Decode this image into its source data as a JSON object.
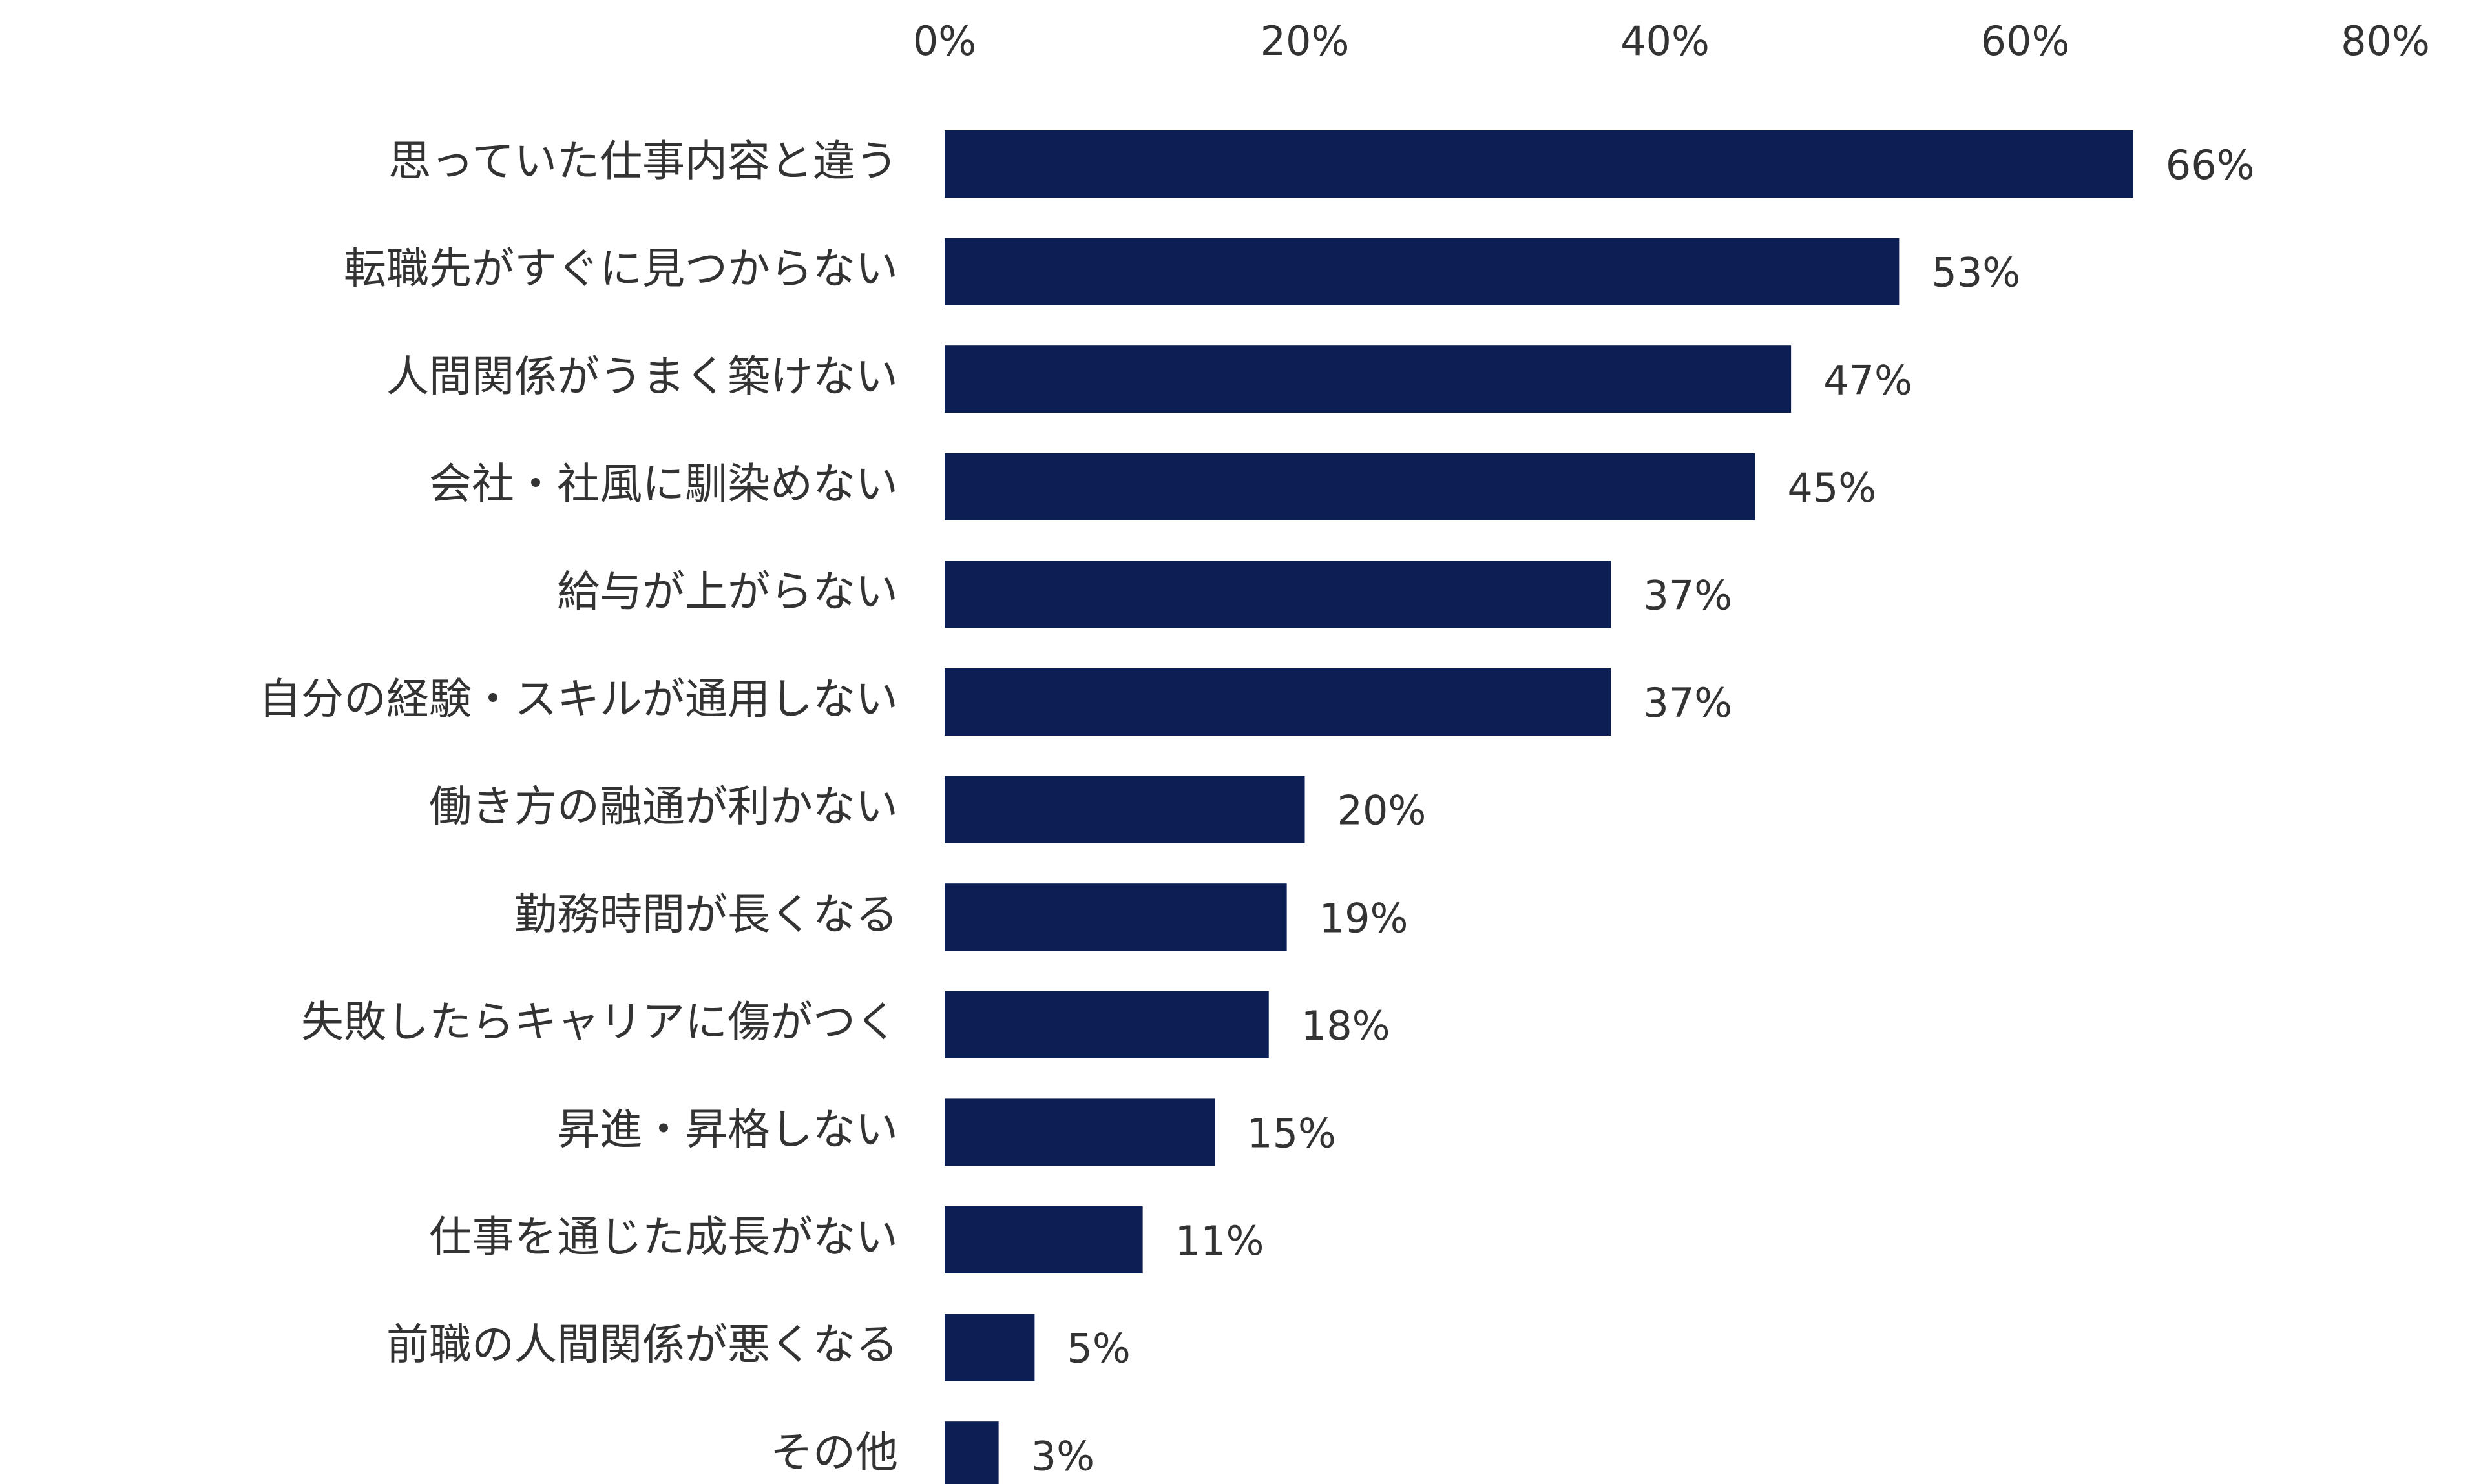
{
  "chart_data": {
    "type": "bar",
    "orientation": "horizontal",
    "categories": [
      "思っていた仕事内容と違う",
      "転職先がすぐに見つからない",
      "人間関係がうまく築けない",
      "会社・社風に馴染めない",
      "給与が上がらない",
      "自分の経験・スキルが通用しない",
      "働き方の融通が利かない",
      "勤務時間が長くなる",
      "失敗したらキャリアに傷がつく",
      "昇進・昇格しない",
      "仕事を通じた成長がない",
      "前職の人間関係が悪くなる",
      "その他"
    ],
    "values": [
      66,
      53,
      47,
      45,
      37,
      37,
      20,
      19,
      18,
      15,
      11,
      5,
      3
    ],
    "value_labels": [
      "66%",
      "53%",
      "47%",
      "45%",
      "37%",
      "37%",
      "20%",
      "19%",
      "18%",
      "15%",
      "11%",
      "5%",
      "3%"
    ],
    "xlim": [
      0,
      80
    ],
    "x_ticks": [
      0,
      20,
      40,
      60,
      80
    ],
    "x_tick_labels": [
      "0%",
      "20%",
      "40%",
      "60%",
      "80%"
    ],
    "axis_position": "top",
    "grid": false,
    "legend": "none",
    "bar_color": "#0c1f55"
  }
}
